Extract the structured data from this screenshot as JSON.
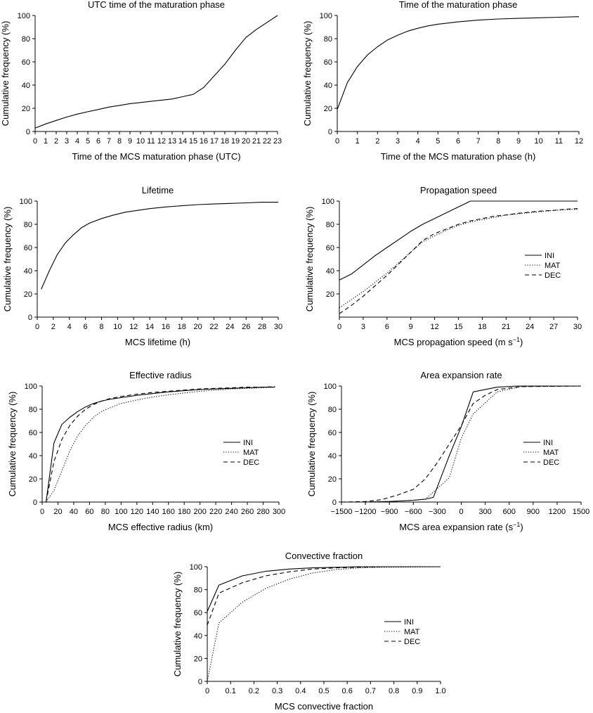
{
  "chart_data": [
    {
      "id": "utc",
      "type": "line",
      "title": "UTC time of the maturation phase",
      "xlabel": "Time of the MCS maturation phase (UTC)",
      "ylabel": "Cumulative frequency (%)",
      "xlim": [
        0,
        23
      ],
      "ylim": [
        0,
        100
      ],
      "xticks": [
        0,
        1,
        2,
        3,
        4,
        5,
        6,
        7,
        8,
        9,
        10,
        11,
        12,
        13,
        14,
        15,
        16,
        17,
        18,
        19,
        20,
        21,
        22,
        23
      ],
      "yticks": [
        0,
        20,
        40,
        60,
        80,
        100
      ],
      "legend": [],
      "series": [
        {
          "style": "solid",
          "x": [
            0,
            1,
            2,
            3,
            4,
            5,
            6,
            7,
            8,
            9,
            10,
            11,
            12,
            13,
            14,
            15,
            16,
            17,
            18,
            19,
            20,
            21,
            22,
            23
          ],
          "y": [
            3,
            6.5,
            9.5,
            12.5,
            15,
            17,
            19,
            21,
            22.5,
            24,
            25,
            26,
            27,
            28,
            30,
            32,
            38,
            48,
            58,
            70,
            81,
            88,
            94,
            100
          ]
        }
      ]
    },
    {
      "id": "mat",
      "type": "line",
      "title": "Time of the maturation phase",
      "xlabel": "Time of the MCS maturation phase (h)",
      "ylabel": "Cumulative frequency (%)",
      "xlim": [
        0,
        12
      ],
      "ylim": [
        0,
        100
      ],
      "xticks": [
        0,
        1,
        2,
        3,
        4,
        5,
        6,
        7,
        8,
        9,
        10,
        11,
        12
      ],
      "yticks": [
        0,
        20,
        40,
        60,
        80,
        100
      ],
      "legend": [],
      "series": [
        {
          "style": "solid",
          "x": [
            0,
            0.5,
            1,
            1.5,
            2,
            2.5,
            3,
            3.5,
            4,
            4.5,
            5,
            6,
            7,
            8,
            9,
            10,
            11,
            12
          ],
          "y": [
            19,
            42,
            56,
            66,
            73,
            79,
            83,
            86.5,
            89,
            91,
            92.5,
            94.5,
            96,
            97,
            97.5,
            98,
            98.5,
            99
          ]
        }
      ]
    },
    {
      "id": "life",
      "type": "line",
      "title": "Lifetime",
      "xlabel": "MCS lifetime (h)",
      "ylabel": "Cumulative frequency (%)",
      "xlim": [
        0,
        30
      ],
      "ylim": [
        0,
        100
      ],
      "xticks": [
        0,
        2,
        4,
        6,
        8,
        10,
        12,
        14,
        16,
        18,
        20,
        22,
        24,
        26,
        28,
        30
      ],
      "yticks": [
        0,
        20,
        40,
        60,
        80,
        100
      ],
      "legend": [],
      "series": [
        {
          "style": "solid",
          "x": [
            0.5,
            1.5,
            2.5,
            3.5,
            4.5,
            5.5,
            6.5,
            8,
            9.5,
            11,
            12.5,
            14,
            16,
            18,
            20,
            22,
            24,
            26,
            28,
            30
          ],
          "y": [
            24,
            40,
            54,
            64,
            71,
            77,
            81,
            85,
            88,
            90.5,
            92,
            93.5,
            95,
            96,
            97,
            97.5,
            98,
            98.5,
            99,
            99
          ]
        }
      ]
    },
    {
      "id": "speed",
      "type": "line",
      "title": "Propagation speed",
      "xlabel": "MCS propagation speed (m s",
      "xlabel_sup": "−1",
      "xlabel_tail": ")",
      "ylabel": "Cumulative frequency (%)",
      "xlim": [
        0,
        30
      ],
      "ylim": [
        0,
        100
      ],
      "ymin_axis": 0,
      "xticks": [
        0,
        3,
        6,
        9,
        12,
        15,
        18,
        21,
        24,
        27,
        30
      ],
      "yticks": [
        20,
        40,
        60,
        80,
        100
      ],
      "legend": [
        "INI",
        "MAT",
        "DEC"
      ],
      "series": [
        {
          "name": "INI",
          "style": "solid",
          "x": [
            0,
            1.5,
            3,
            4.5,
            6,
            7.5,
            9,
            10.5,
            12,
            13.5,
            15,
            16.5,
            18,
            30
          ],
          "y": [
            32,
            37,
            45,
            53,
            60,
            67,
            74,
            80,
            85,
            90,
            95,
            100,
            100,
            100
          ]
        },
        {
          "name": "MAT",
          "style": "dotted",
          "x": [
            0,
            1.5,
            3,
            4.5,
            6,
            7.5,
            9,
            10.5,
            12,
            13.5,
            15,
            16.5,
            18,
            19.5,
            21,
            22.5,
            24,
            25.5,
            27,
            28.5,
            30
          ],
          "y": [
            8,
            15,
            22,
            30,
            38,
            47,
            56,
            65,
            70,
            75,
            79,
            82,
            84,
            86,
            88,
            89,
            90,
            91,
            92,
            92.5,
            93
          ]
        },
        {
          "name": "DEC",
          "style": "dashed",
          "x": [
            0,
            1.5,
            3,
            4.5,
            6,
            7.5,
            9,
            10.5,
            12,
            13.5,
            15,
            16.5,
            18,
            19.5,
            21,
            22.5,
            24,
            25.5,
            27,
            28.5,
            30
          ],
          "y": [
            3,
            10,
            18,
            27,
            36,
            46,
            56,
            66,
            72,
            76,
            80,
            83,
            85,
            87,
            88,
            89.5,
            90.5,
            91.5,
            92,
            93,
            93.5
          ]
        }
      ]
    },
    {
      "id": "radius",
      "type": "line",
      "title": "Effective radius",
      "xlabel": "MCS effective radius (km)",
      "ylabel": "Cumulative frequency (%)",
      "xlim": [
        0,
        300
      ],
      "ylim": [
        0,
        100
      ],
      "xticks": [
        0,
        20,
        40,
        60,
        80,
        100,
        120,
        140,
        160,
        180,
        200,
        220,
        240,
        260,
        280,
        300
      ],
      "yticks": [
        0,
        20,
        40,
        60,
        80,
        100
      ],
      "legend": [
        "INI",
        "MAT",
        "DEC"
      ],
      "series": [
        {
          "name": "INI",
          "style": "solid",
          "x": [
            5,
            15,
            25,
            35,
            45,
            55,
            65,
            75,
            85,
            100,
            120,
            140,
            160,
            180,
            200,
            220,
            240,
            260,
            280,
            295
          ],
          "y": [
            0,
            51,
            67,
            73,
            78,
            82,
            85,
            87,
            88.5,
            90,
            92,
            93.5,
            95,
            96,
            97,
            97.5,
            98,
            98.5,
            99,
            99
          ]
        },
        {
          "name": "MAT",
          "style": "dotted",
          "x": [
            5,
            15,
            25,
            35,
            45,
            55,
            65,
            75,
            85,
            100,
            120,
            140,
            160,
            180,
            200,
            220,
            240,
            260,
            280,
            295
          ],
          "y": [
            0,
            10,
            27,
            44,
            57,
            66,
            73,
            78,
            81,
            85,
            88,
            90.5,
            92.5,
            94,
            95.5,
            96.5,
            97.5,
            98,
            98.5,
            99
          ]
        },
        {
          "name": "DEC",
          "style": "dashed",
          "x": [
            5,
            15,
            25,
            35,
            45,
            55,
            65,
            75,
            85,
            100,
            120,
            140,
            160,
            180,
            200,
            220,
            240,
            260,
            280,
            295
          ],
          "y": [
            0,
            35,
            54,
            66,
            74,
            80,
            84,
            87,
            89,
            91,
            93,
            94.5,
            95.5,
            96.5,
            97.5,
            98,
            98.5,
            99,
            99,
            99.5
          ]
        }
      ]
    },
    {
      "id": "area",
      "type": "line",
      "title": "Area expansion rate",
      "xlabel": "MCS area expansion rate (s",
      "xlabel_sup": "−1",
      "xlabel_tail": ")",
      "ylabel": "Cumulative frequency (%)",
      "xlim": [
        -1500,
        1500
      ],
      "ylim": [
        0,
        100
      ],
      "xticks": [
        -1500,
        -1200,
        -900,
        -600,
        -300,
        0,
        300,
        600,
        900,
        1200,
        1500
      ],
      "yticks": [
        0,
        20,
        40,
        60,
        80,
        100
      ],
      "legend": [
        "INI",
        "MAT",
        "DEC"
      ],
      "series": [
        {
          "name": "INI",
          "style": "solid",
          "x": [
            -1500,
            -1200,
            -900,
            -600,
            -450,
            -350,
            -150,
            0,
            150,
            450,
            700,
            1500
          ],
          "y": [
            0,
            0,
            0.5,
            1.5,
            2.5,
            4,
            40,
            65,
            95,
            99,
            100,
            100
          ]
        },
        {
          "name": "MAT",
          "style": "dotted",
          "x": [
            -1500,
            -1200,
            -900,
            -600,
            -450,
            -150,
            0,
            150,
            450,
            750,
            1500
          ],
          "y": [
            0,
            0,
            0.5,
            1.5,
            2.5,
            21,
            55,
            76,
            95,
            99.5,
            100
          ]
        },
        {
          "name": "DEC",
          "style": "dashed",
          "x": [
            -1500,
            -1200,
            -1000,
            -800,
            -600,
            -450,
            -300,
            -150,
            0,
            150,
            300,
            450,
            750,
            1500
          ],
          "y": [
            0,
            0.5,
            2,
            6,
            11,
            20,
            34,
            50,
            66,
            85,
            92,
            97,
            99.5,
            100
          ]
        }
      ]
    },
    {
      "id": "conv",
      "type": "line",
      "title": "Convective fraction",
      "xlabel": "MCS convective fraction",
      "ylabel": "Cumulative frequency (%)",
      "xlim": [
        0,
        1
      ],
      "ylim": [
        0,
        100
      ],
      "xticks": [
        0,
        0.1,
        0.2,
        0.3,
        0.4,
        0.5,
        0.6,
        0.7,
        0.8,
        0.9,
        1.0
      ],
      "xticklabels": [
        "0",
        "0.1",
        "0.2",
        "0.3",
        "0.4",
        "0.5",
        "0.6",
        "0.7",
        "0.8",
        "0.9",
        "1.0"
      ],
      "yticks": [
        0,
        20,
        40,
        60,
        80,
        100
      ],
      "legend": [
        "INI",
        "MAT",
        "DEC"
      ],
      "series": [
        {
          "name": "INI",
          "style": "solid",
          "x": [
            0,
            0.05,
            0.15,
            0.25,
            0.35,
            0.45,
            0.55,
            0.65,
            0.75,
            1.0
          ],
          "y": [
            61,
            84,
            92,
            96,
            98,
            99,
            99.5,
            100,
            100,
            100
          ]
        },
        {
          "name": "MAT",
          "style": "dotted",
          "x": [
            0,
            0.05,
            0.15,
            0.25,
            0.35,
            0.45,
            0.55,
            0.65,
            0.75,
            1.0
          ],
          "y": [
            0,
            51,
            69,
            81,
            89,
            94.5,
            97.5,
            99,
            99.5,
            100
          ]
        },
        {
          "name": "DEC",
          "style": "dashed",
          "x": [
            0,
            0.05,
            0.15,
            0.25,
            0.35,
            0.45,
            0.55,
            0.65,
            0.75,
            1.0
          ],
          "y": [
            49,
            77,
            86,
            92,
            95.5,
            98,
            99,
            99.5,
            100,
            100
          ]
        }
      ]
    }
  ]
}
